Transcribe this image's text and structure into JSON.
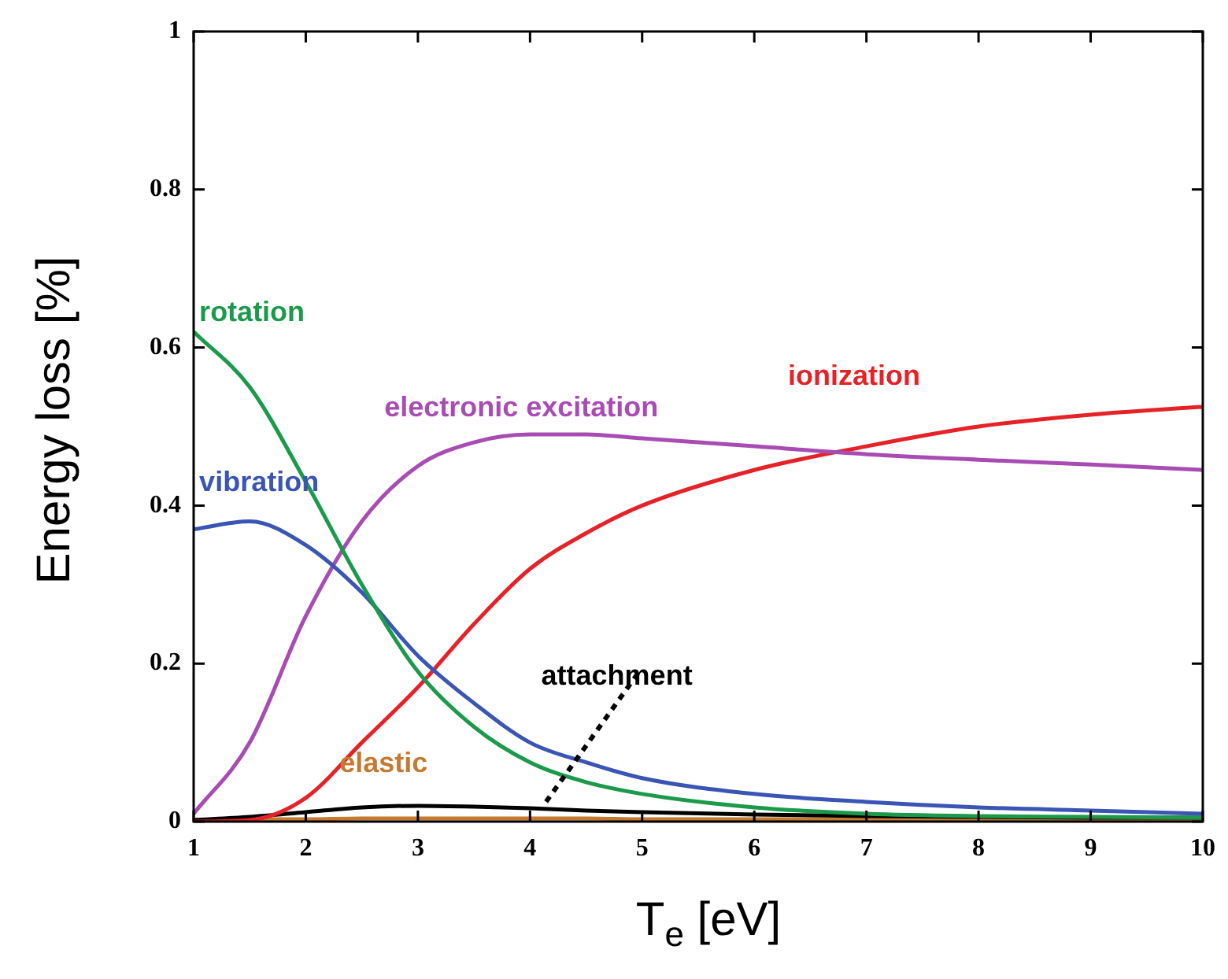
{
  "chart_data": {
    "type": "line",
    "xlabel": "T$_{e}$ [eV]",
    "ylabel": "Energy loss [%]",
    "xlim": [
      1,
      10
    ],
    "xticks": [
      1,
      2,
      3,
      4,
      5,
      6,
      7,
      8,
      9,
      10
    ],
    "ylim": [
      0,
      1
    ],
    "yticks": [
      0,
      0.2,
      0.4,
      0.6,
      0.8,
      1
    ],
    "x": [
      1,
      1.5,
      2,
      2.5,
      3,
      3.5,
      4,
      4.5,
      5,
      6,
      7,
      8,
      9,
      10
    ],
    "marker": "none",
    "line_style": "solid",
    "legend": false,
    "series": [
      {
        "name": "rotation",
        "color": "#1a9a4a",
        "values": [
          0.62,
          0.55,
          0.43,
          0.3,
          0.19,
          0.12,
          0.075,
          0.05,
          0.035,
          0.018,
          0.01,
          0.007,
          0.006,
          0.005
        ]
      },
      {
        "name": "vibration",
        "color": "#3a55b4",
        "values": [
          0.37,
          0.38,
          0.35,
          0.29,
          0.21,
          0.15,
          0.1,
          0.075,
          0.055,
          0.035,
          0.025,
          0.018,
          0.014,
          0.01
        ]
      },
      {
        "name": "electronic excitation",
        "color": "#a84cb4",
        "values": [
          0.01,
          0.1,
          0.26,
          0.38,
          0.45,
          0.48,
          0.49,
          0.49,
          0.485,
          0.475,
          0.465,
          0.458,
          0.452,
          0.445
        ]
      },
      {
        "name": "ionization",
        "color": "#e52228",
        "values": [
          0,
          0.002,
          0.03,
          0.1,
          0.17,
          0.25,
          0.32,
          0.365,
          0.4,
          0.445,
          0.475,
          0.5,
          0.515,
          0.525
        ]
      },
      {
        "name": "attachment",
        "color": "#000000",
        "values": [
          0.002,
          0.006,
          0.012,
          0.018,
          0.02,
          0.019,
          0.017,
          0.014,
          0.012,
          0.009,
          0.007,
          0.006,
          0.005,
          0.005
        ]
      },
      {
        "name": "elastic",
        "color": "#c57a30",
        "values": [
          0.002,
          0.003,
          0.003,
          0.004,
          0.004,
          0.004,
          0.004,
          0.004,
          0.003,
          0.003,
          0.003,
          0.003,
          0.003,
          0.003
        ]
      }
    ]
  }
}
